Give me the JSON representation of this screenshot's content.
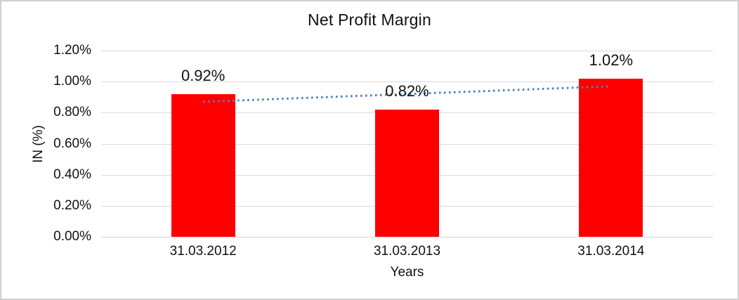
{
  "chart_data": {
    "type": "bar",
    "title": "Net Profit Margin",
    "xlabel": "Years",
    "ylabel": "IN (%)",
    "categories": [
      "31.03.2012",
      "31.03.2013",
      "31.03.2014"
    ],
    "values": [
      0.92,
      0.82,
      1.02
    ],
    "data_labels": [
      "0.92%",
      "0.82%",
      "1.02%"
    ],
    "ylim": [
      0,
      1.2
    ],
    "ytick_step": 0.2,
    "ytick_labels": [
      "0.00%",
      "0.20%",
      "0.40%",
      "0.60%",
      "0.80%",
      "1.00%",
      "1.20%"
    ],
    "grid": true,
    "legend": "none",
    "bar_color": "#ff0000",
    "trendline": {
      "type": "linear",
      "style": "dotted",
      "color": "#4f81bd",
      "endpoint_values": [
        0.87,
        0.97
      ]
    },
    "colors": {
      "gridline": "#d9d9d9",
      "axis_line": "#d6d6d6",
      "text": "#111111",
      "border": "#d0d0d0",
      "background": "#ffffff"
    }
  }
}
